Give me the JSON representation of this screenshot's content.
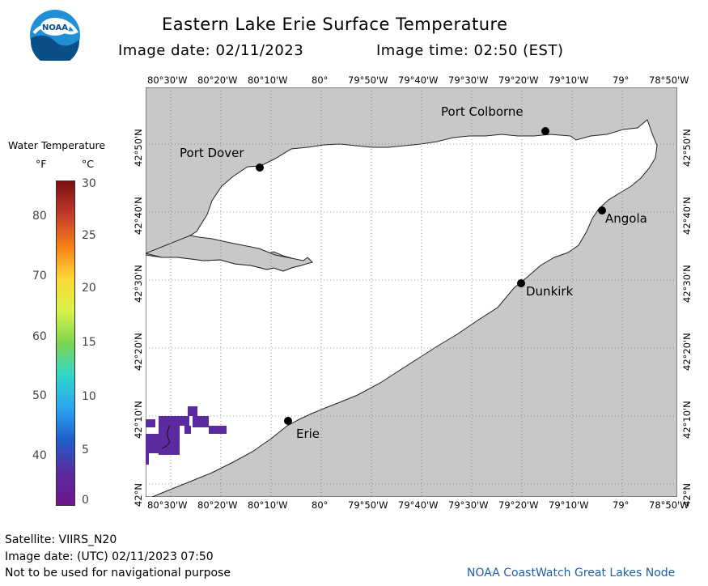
{
  "header": {
    "title": "Eastern Lake Erie Surface Temperature",
    "image_date": "Image date: 02/11/2023",
    "image_time": "Image time: 02:50 (EST)"
  },
  "logo": {
    "text": "NOAA"
  },
  "colorbar": {
    "title": "Water Temperature",
    "unit_f": "°F",
    "unit_c": "°C",
    "f_ticks": [
      "80",
      "70",
      "60",
      "50",
      "40"
    ],
    "c_ticks": [
      "30",
      "25",
      "20",
      "15",
      "10",
      "5",
      "0"
    ],
    "colors": [
      "#7a0f12",
      "#c0392b",
      "#f57f17",
      "#fdd835",
      "#d8f24a",
      "#7cd651",
      "#2fd6c8",
      "#2ba6f0",
      "#1e5ec9",
      "#5b2a9e",
      "#6e168e"
    ]
  },
  "map": {
    "lon_labels": [
      "80°30'W",
      "80°20'W",
      "80°10'W",
      "80°",
      "79°50'W",
      "79°40'W",
      "79°30'W",
      "79°20'W",
      "79°10'W",
      "79°",
      "78°50'W"
    ],
    "lat_labels": [
      "42°50'N",
      "42°40'N",
      "42°30'N",
      "42°20'N",
      "42°10'N",
      "42°N"
    ],
    "land_color": "#c8c8c8",
    "water_color": "#ffffff",
    "ice_color": "#5b2a9e",
    "cities": [
      {
        "name": "Port Colborne"
      },
      {
        "name": "Port Dover"
      },
      {
        "name": "Angola"
      },
      {
        "name": "Dunkirk"
      },
      {
        "name": "Erie"
      }
    ]
  },
  "footer": {
    "satellite": "Satellite: VIIRS_N20",
    "utc_date": "Image date: (UTC) 02/11/2023  07:50",
    "disclaimer": "Not to be used for navigational purpose",
    "credit": "NOAA CoastWatch Great Lakes Node"
  }
}
